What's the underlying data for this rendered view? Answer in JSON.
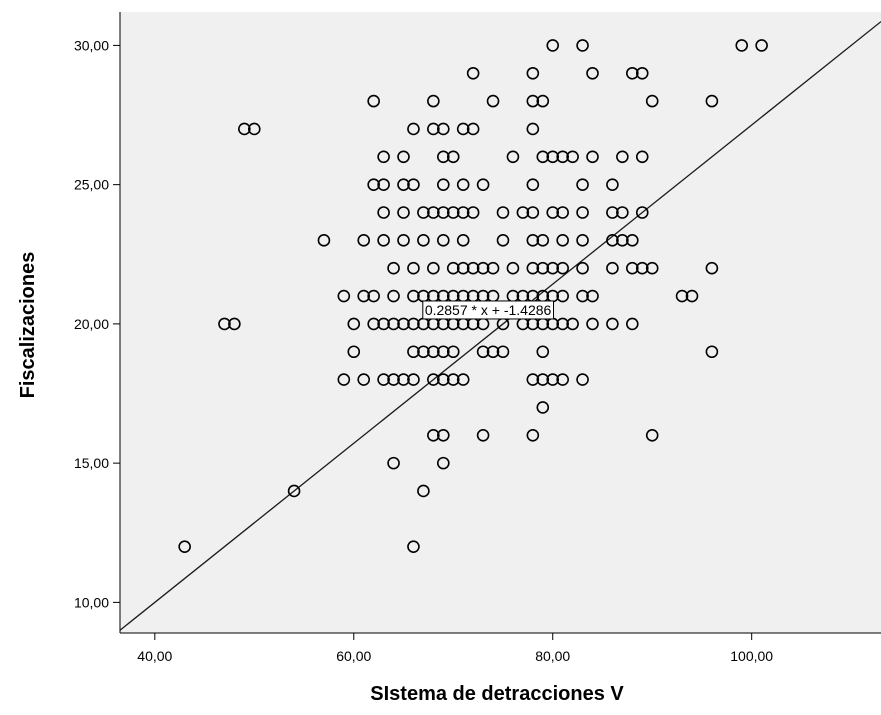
{
  "chart_data": {
    "type": "scatter",
    "xlabel": "SIstema de detracciones V",
    "ylabel": "Fiscalizaciones",
    "xlim": [
      36.5,
      113
    ],
    "ylim": [
      8.9,
      31.2
    ],
    "x_ticks": [
      40,
      60,
      80,
      100
    ],
    "x_tick_labels": [
      "40,00",
      "60,00",
      "80,00",
      "100,00"
    ],
    "y_ticks": [
      10,
      15,
      20,
      25,
      30
    ],
    "y_tick_labels": [
      "10,00",
      "15,00",
      "20,00",
      "25,00",
      "30,00"
    ],
    "grid": false,
    "background_color": "#f0f0f0",
    "marker_color": "#000000",
    "fit_line": {
      "slope": 0.2857,
      "intercept": -1.4286,
      "label": "0.2857 * x + -1.4286",
      "label_at": {
        "x": 73.5,
        "y": 20.5
      }
    },
    "points": [
      [
        80,
        30
      ],
      [
        83,
        30
      ],
      [
        99,
        30
      ],
      [
        101,
        30
      ],
      [
        72,
        29
      ],
      [
        78,
        29
      ],
      [
        84,
        29
      ],
      [
        88,
        29
      ],
      [
        89,
        29
      ],
      [
        62,
        28
      ],
      [
        68,
        28
      ],
      [
        74,
        28
      ],
      [
        78,
        28
      ],
      [
        79,
        28
      ],
      [
        90,
        28
      ],
      [
        96,
        28
      ],
      [
        49,
        27
      ],
      [
        50,
        27
      ],
      [
        66,
        27
      ],
      [
        68,
        27
      ],
      [
        69,
        27
      ],
      [
        71,
        27
      ],
      [
        72,
        27
      ],
      [
        78,
        27
      ],
      [
        63,
        26
      ],
      [
        65,
        26
      ],
      [
        69,
        26
      ],
      [
        70,
        26
      ],
      [
        76,
        26
      ],
      [
        79,
        26
      ],
      [
        80,
        26
      ],
      [
        81,
        26
      ],
      [
        82,
        26
      ],
      [
        84,
        26
      ],
      [
        87,
        26
      ],
      [
        89,
        26
      ],
      [
        62,
        25
      ],
      [
        63,
        25
      ],
      [
        65,
        25
      ],
      [
        66,
        25
      ],
      [
        69,
        25
      ],
      [
        71,
        25
      ],
      [
        73,
        25
      ],
      [
        78,
        25
      ],
      [
        83,
        25
      ],
      [
        86,
        25
      ],
      [
        63,
        24
      ],
      [
        65,
        24
      ],
      [
        67,
        24
      ],
      [
        68,
        24
      ],
      [
        69,
        24
      ],
      [
        70,
        24
      ],
      [
        71,
        24
      ],
      [
        72,
        24
      ],
      [
        75,
        24
      ],
      [
        77,
        24
      ],
      [
        78,
        24
      ],
      [
        80,
        24
      ],
      [
        81,
        24
      ],
      [
        83,
        24
      ],
      [
        86,
        24
      ],
      [
        87,
        24
      ],
      [
        89,
        24
      ],
      [
        57,
        23
      ],
      [
        61,
        23
      ],
      [
        63,
        23
      ],
      [
        65,
        23
      ],
      [
        67,
        23
      ],
      [
        69,
        23
      ],
      [
        71,
        23
      ],
      [
        75,
        23
      ],
      [
        78,
        23
      ],
      [
        79,
        23
      ],
      [
        81,
        23
      ],
      [
        83,
        23
      ],
      [
        86,
        23
      ],
      [
        87,
        23
      ],
      [
        88,
        23
      ],
      [
        64,
        22
      ],
      [
        66,
        22
      ],
      [
        68,
        22
      ],
      [
        70,
        22
      ],
      [
        71,
        22
      ],
      [
        72,
        22
      ],
      [
        73,
        22
      ],
      [
        74,
        22
      ],
      [
        76,
        22
      ],
      [
        78,
        22
      ],
      [
        79,
        22
      ],
      [
        80,
        22
      ],
      [
        81,
        22
      ],
      [
        83,
        22
      ],
      [
        86,
        22
      ],
      [
        88,
        22
      ],
      [
        89,
        22
      ],
      [
        90,
        22
      ],
      [
        96,
        22
      ],
      [
        59,
        21
      ],
      [
        61,
        21
      ],
      [
        62,
        21
      ],
      [
        64,
        21
      ],
      [
        66,
        21
      ],
      [
        67,
        21
      ],
      [
        68,
        21
      ],
      [
        69,
        21
      ],
      [
        70,
        21
      ],
      [
        71,
        21
      ],
      [
        72,
        21
      ],
      [
        73,
        21
      ],
      [
        74,
        21
      ],
      [
        76,
        21
      ],
      [
        77,
        21
      ],
      [
        78,
        21
      ],
      [
        79,
        21
      ],
      [
        80,
        21
      ],
      [
        81,
        21
      ],
      [
        83,
        21
      ],
      [
        84,
        21
      ],
      [
        93,
        21
      ],
      [
        94,
        21
      ],
      [
        47,
        20
      ],
      [
        48,
        20
      ],
      [
        60,
        20
      ],
      [
        62,
        20
      ],
      [
        63,
        20
      ],
      [
        64,
        20
      ],
      [
        65,
        20
      ],
      [
        66,
        20
      ],
      [
        67,
        20
      ],
      [
        68,
        20
      ],
      [
        69,
        20
      ],
      [
        70,
        20
      ],
      [
        71,
        20
      ],
      [
        72,
        20
      ],
      [
        73,
        20
      ],
      [
        75,
        20
      ],
      [
        77,
        20
      ],
      [
        78,
        20
      ],
      [
        79,
        20
      ],
      [
        80,
        20
      ],
      [
        81,
        20
      ],
      [
        82,
        20
      ],
      [
        84,
        20
      ],
      [
        86,
        20
      ],
      [
        88,
        20
      ],
      [
        60,
        19
      ],
      [
        66,
        19
      ],
      [
        67,
        19
      ],
      [
        68,
        19
      ],
      [
        69,
        19
      ],
      [
        70,
        19
      ],
      [
        73,
        19
      ],
      [
        74,
        19
      ],
      [
        75,
        19
      ],
      [
        79,
        19
      ],
      [
        96,
        19
      ],
      [
        59,
        18
      ],
      [
        61,
        18
      ],
      [
        63,
        18
      ],
      [
        64,
        18
      ],
      [
        65,
        18
      ],
      [
        66,
        18
      ],
      [
        68,
        18
      ],
      [
        69,
        18
      ],
      [
        70,
        18
      ],
      [
        71,
        18
      ],
      [
        78,
        18
      ],
      [
        79,
        18
      ],
      [
        80,
        18
      ],
      [
        81,
        18
      ],
      [
        83,
        18
      ],
      [
        79,
        17
      ],
      [
        68,
        16
      ],
      [
        69,
        16
      ],
      [
        73,
        16
      ],
      [
        78,
        16
      ],
      [
        90,
        16
      ],
      [
        64,
        15
      ],
      [
        69,
        15
      ],
      [
        54,
        14
      ],
      [
        67,
        14
      ],
      [
        43,
        12
      ],
      [
        66,
        12
      ]
    ]
  }
}
